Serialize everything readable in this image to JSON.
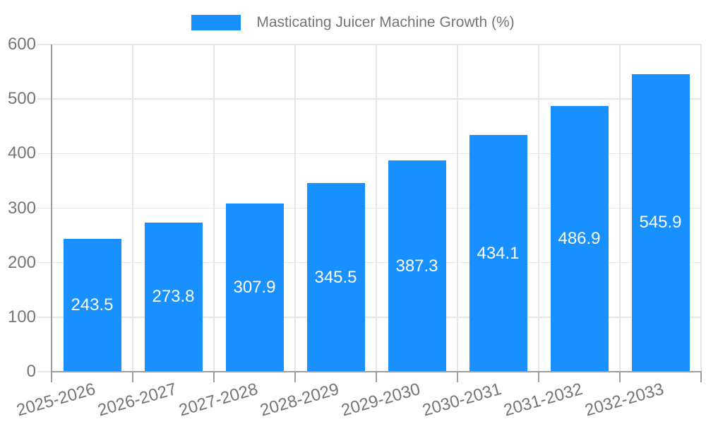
{
  "chart_data": {
    "type": "bar",
    "title": "Masticating Juicer Machine Growth (%)",
    "legend": [
      "Masticating Juicer Machine Growth (%)"
    ],
    "legend_position": "top",
    "categories": [
      "2025-2026",
      "2026-2027",
      "2027-2028",
      "2028-2029",
      "2029-2030",
      "2030-2031",
      "2031-2032",
      "2032-2033"
    ],
    "values": [
      243.5,
      273.8,
      307.9,
      345.5,
      387.3,
      434.1,
      486.9,
      545.9
    ],
    "xlabel": "",
    "ylabel": "",
    "ylim": [
      0,
      600
    ],
    "yticks": [
      0,
      100,
      200,
      300,
      400,
      500,
      600
    ],
    "grid": "on",
    "x_label_rotation_deg": -16,
    "colors": {
      "bar": "#1890ff",
      "bar_value_label": "#ffffff",
      "axis_text": "#757575",
      "axis_line": "#9e9e9e",
      "grid_line": "#e6e6e6",
      "background": "#ffffff"
    }
  }
}
